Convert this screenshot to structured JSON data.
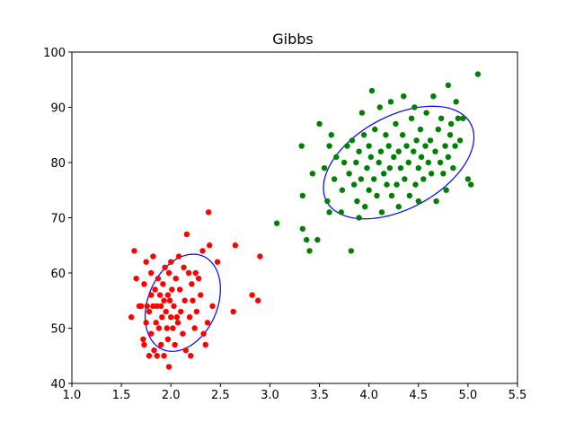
{
  "chart_data": {
    "type": "scatter",
    "title": "Gibbs",
    "xlabel": "",
    "ylabel": "",
    "xlim": [
      1.0,
      5.5
    ],
    "ylim": [
      40,
      100
    ],
    "xticks": [
      1.0,
      1.5,
      2.0,
      2.5,
      3.0,
      3.5,
      4.0,
      4.5,
      5.0,
      5.5
    ],
    "yticks": [
      40,
      50,
      60,
      70,
      80,
      90,
      100
    ],
    "xtick_labels": [
      "1.0",
      "1.5",
      "2.0",
      "2.5",
      "3.0",
      "3.5",
      "4.0",
      "4.5",
      "5.0",
      "5.5"
    ],
    "ytick_labels": [
      "40",
      "50",
      "60",
      "70",
      "80",
      "90",
      "100"
    ],
    "grid": false,
    "series": [
      {
        "color": "#ff0000",
        "points": [
          [
            1.6,
            52.0
          ],
          [
            1.63,
            64.0
          ],
          [
            1.65,
            59.0
          ],
          [
            1.68,
            54.0
          ],
          [
            1.7,
            54.0
          ],
          [
            1.72,
            48.0
          ],
          [
            1.73,
            58.0
          ],
          [
            1.73,
            47.0
          ],
          [
            1.75,
            62.0
          ],
          [
            1.75,
            51.0
          ],
          [
            1.76,
            54.0
          ],
          [
            1.78,
            53.0
          ],
          [
            1.78,
            45.0
          ],
          [
            1.8,
            60.0
          ],
          [
            1.8,
            56.0
          ],
          [
            1.8,
            49.0
          ],
          [
            1.82,
            63.0
          ],
          [
            1.82,
            54.0
          ],
          [
            1.83,
            46.0
          ],
          [
            1.84,
            57.0
          ],
          [
            1.85,
            51.0
          ],
          [
            1.86,
            54.0
          ],
          [
            1.86,
            45.0
          ],
          [
            1.87,
            59.0
          ],
          [
            1.88,
            50.0
          ],
          [
            1.89,
            56.0
          ],
          [
            1.9,
            54.0
          ],
          [
            1.9,
            47.0
          ],
          [
            1.91,
            52.0
          ],
          [
            1.92,
            58.0
          ],
          [
            1.93,
            45.0
          ],
          [
            1.93,
            55.0
          ],
          [
            1.94,
            61.0
          ],
          [
            1.95,
            53.0
          ],
          [
            1.96,
            50.0
          ],
          [
            1.97,
            56.0
          ],
          [
            1.97,
            48.0
          ],
          [
            1.98,
            60.0
          ],
          [
            1.98,
            43.0
          ],
          [
            1.99,
            55.0
          ],
          [
            2.0,
            52.0
          ],
          [
            2.0,
            62.0
          ],
          [
            2.01,
            57.0
          ],
          [
            2.02,
            50.0
          ],
          [
            2.03,
            54.0
          ],
          [
            2.04,
            47.0
          ],
          [
            2.05,
            59.0
          ],
          [
            2.06,
            52.0
          ],
          [
            2.07,
            51.0
          ],
          [
            2.08,
            63.0
          ],
          [
            2.09,
            57.0
          ],
          [
            2.1,
            53.0
          ],
          [
            2.12,
            49.0
          ],
          [
            2.13,
            61.0
          ],
          [
            2.14,
            55.0
          ],
          [
            2.15,
            46.0
          ],
          [
            2.16,
            67.0
          ],
          [
            2.18,
            60.0
          ],
          [
            2.19,
            52.0
          ],
          [
            2.2,
            45.0
          ],
          [
            2.21,
            58.0
          ],
          [
            2.22,
            55.0
          ],
          [
            2.24,
            50.0
          ],
          [
            2.25,
            60.0
          ],
          [
            2.26,
            53.0
          ],
          [
            2.28,
            59.0
          ],
          [
            2.3,
            56.0
          ],
          [
            2.32,
            64.0
          ],
          [
            2.33,
            49.0
          ],
          [
            2.35,
            47.0
          ],
          [
            2.37,
            51.0
          ],
          [
            2.38,
            71.0
          ],
          [
            2.39,
            65.0
          ],
          [
            2.42,
            54.0
          ],
          [
            2.47,
            62.0
          ],
          [
            2.63,
            53.0
          ],
          [
            2.65,
            65.0
          ],
          [
            2.82,
            56.0
          ],
          [
            2.88,
            55.0
          ],
          [
            2.9,
            63.0
          ]
        ],
        "ellipse": {
          "center": [
            2.12,
            54.6
          ],
          "sd_x": 0.19,
          "sd_y": 4.4,
          "rho": 0.28,
          "scale": 2
        }
      },
      {
        "color": "#008000",
        "points": [
          [
            3.07,
            69.0
          ],
          [
            3.32,
            83.0
          ],
          [
            3.33,
            74.0
          ],
          [
            3.33,
            68.0
          ],
          [
            3.37,
            66.0
          ],
          [
            3.4,
            64.0
          ],
          [
            3.43,
            78.0
          ],
          [
            3.48,
            66.0
          ],
          [
            3.5,
            87.0
          ],
          [
            3.55,
            79.0
          ],
          [
            3.58,
            73.0
          ],
          [
            3.6,
            71.0
          ],
          [
            3.6,
            83.0
          ],
          [
            3.62,
            85.0
          ],
          [
            3.65,
            77.0
          ],
          [
            3.67,
            81.0
          ],
          [
            3.72,
            71.0
          ],
          [
            3.73,
            75.0
          ],
          [
            3.75,
            80.0
          ],
          [
            3.78,
            83.0
          ],
          [
            3.8,
            78.0
          ],
          [
            3.82,
            64.0
          ],
          [
            3.83,
            84.0
          ],
          [
            3.85,
            76.0
          ],
          [
            3.87,
            80.0
          ],
          [
            3.88,
            73.0
          ],
          [
            3.9,
            82.0
          ],
          [
            3.9,
            70.0
          ],
          [
            3.92,
            77.0
          ],
          [
            3.93,
            89.0
          ],
          [
            3.95,
            85.0
          ],
          [
            3.96,
            72.0
          ],
          [
            3.98,
            79.0
          ],
          [
            4.0,
            75.0
          ],
          [
            4.0,
            83.0
          ],
          [
            4.02,
            81.0
          ],
          [
            4.03,
            93.0
          ],
          [
            4.05,
            77.0
          ],
          [
            4.06,
            86.0
          ],
          [
            4.08,
            74.0
          ],
          [
            4.1,
            80.0
          ],
          [
            4.11,
            90.0
          ],
          [
            4.12,
            82.0
          ],
          [
            4.13,
            71.0
          ],
          [
            4.15,
            78.0
          ],
          [
            4.17,
            85.0
          ],
          [
            4.18,
            76.0
          ],
          [
            4.2,
            83.0
          ],
          [
            4.21,
            79.0
          ],
          [
            4.22,
            91.0
          ],
          [
            4.23,
            74.0
          ],
          [
            4.25,
            81.0
          ],
          [
            4.27,
            87.0
          ],
          [
            4.28,
            76.0
          ],
          [
            4.3,
            82.0
          ],
          [
            4.3,
            72.0
          ],
          [
            4.32,
            79.0
          ],
          [
            4.34,
            85.0
          ],
          [
            4.35,
            92.0
          ],
          [
            4.36,
            77.0
          ],
          [
            4.38,
            83.0
          ],
          [
            4.4,
            80.0
          ],
          [
            4.41,
            74.0
          ],
          [
            4.43,
            88.0
          ],
          [
            4.45,
            82.0
          ],
          [
            4.46,
            90.0
          ],
          [
            4.47,
            76.0
          ],
          [
            4.48,
            84.0
          ],
          [
            4.5,
            79.0
          ],
          [
            4.5,
            73.0
          ],
          [
            4.52,
            86.0
          ],
          [
            4.53,
            81.0
          ],
          [
            4.55,
            77.0
          ],
          [
            4.57,
            83.0
          ],
          [
            4.58,
            89.0
          ],
          [
            4.6,
            80.0
          ],
          [
            4.62,
            84.0
          ],
          [
            4.63,
            78.0
          ],
          [
            4.65,
            92.0
          ],
          [
            4.67,
            82.0
          ],
          [
            4.68,
            73.0
          ],
          [
            4.7,
            86.0
          ],
          [
            4.72,
            80.0
          ],
          [
            4.73,
            88.0
          ],
          [
            4.75,
            78.0
          ],
          [
            4.77,
            83.0
          ],
          [
            4.78,
            75.0
          ],
          [
            4.8,
            81.0
          ],
          [
            4.8,
            94.0
          ],
          [
            4.82,
            85.0
          ],
          [
            4.83,
            87.0
          ],
          [
            4.85,
            79.0
          ],
          [
            4.87,
            83.0
          ],
          [
            4.88,
            91.0
          ],
          [
            4.9,
            88.0
          ],
          [
            4.92,
            84.0
          ],
          [
            4.95,
            88.0
          ],
          [
            5.0,
            77.0
          ],
          [
            5.03,
            76.0
          ],
          [
            5.1,
            96.0
          ]
        ],
        "ellipse": {
          "center": [
            4.3,
            80.0
          ],
          "sd_x": 0.38,
          "sd_y": 5.1,
          "rho": 0.45,
          "scale": 2
        }
      }
    ],
    "ellipse_color": "#0000ff"
  }
}
